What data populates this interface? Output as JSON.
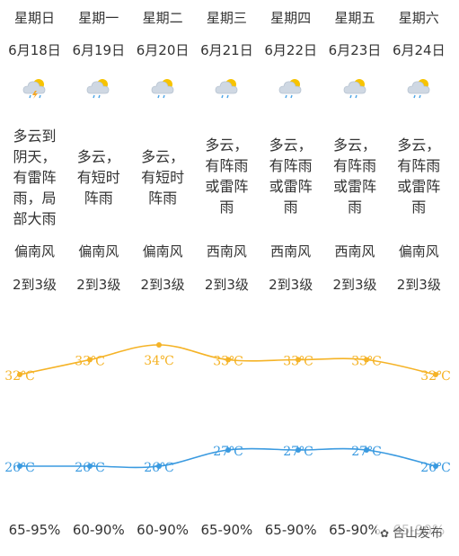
{
  "days": [
    {
      "weekday": "星期日",
      "date": "6月18日",
      "icon": "thunder-cloud-icon",
      "desc": "多云到阴天，有雷阵雨，局部大雨",
      "wind": "偏南风",
      "level": "2到3级",
      "humidity": "65-95%"
    },
    {
      "weekday": "星期一",
      "date": "6月19日",
      "icon": "partly-cloudy-shower-icon",
      "desc": "多云，有短时阵雨",
      "wind": "偏南风",
      "level": "2到3级",
      "humidity": "60-90%"
    },
    {
      "weekday": "星期二",
      "date": "6月20日",
      "icon": "partly-cloudy-shower-icon",
      "desc": "多云，有短时阵雨",
      "wind": "偏南风",
      "level": "2到3级",
      "humidity": "60-90%"
    },
    {
      "weekday": "星期三",
      "date": "6月21日",
      "icon": "partly-cloudy-shower-icon",
      "desc": "多云，有阵雨或雷阵雨",
      "wind": "西南风",
      "level": "2到3级",
      "humidity": "65-90%"
    },
    {
      "weekday": "星期四",
      "date": "6月22日",
      "icon": "partly-cloudy-shower-icon",
      "desc": "多云，有阵雨或雷阵雨",
      "wind": "西南风",
      "level": "2到3级",
      "humidity": "65-90%"
    },
    {
      "weekday": "星期五",
      "date": "6月23日",
      "icon": "partly-cloudy-shower-icon",
      "desc": "多云，有阵雨或雷阵雨",
      "wind": "西南风",
      "level": "2到3级",
      "humidity": "65-90%"
    },
    {
      "weekday": "星期六",
      "date": "6月24日",
      "icon": "partly-cloudy-shower-icon",
      "desc": "多云，有阵雨或雷阵雨",
      "wind": "偏南风",
      "level": "2到3级",
      "humidity": "65-90%"
    }
  ],
  "chart_data": {
    "type": "line",
    "x": [
      "星期日",
      "星期一",
      "星期二",
      "星期三",
      "星期四",
      "星期五",
      "星期六"
    ],
    "series": [
      {
        "values": [
          32,
          33,
          34,
          33,
          33,
          33,
          32
        ],
        "labels": [
          "32℃",
          "33℃",
          "34℃",
          "33℃",
          "33℃",
          "33℃",
          "32℃"
        ],
        "color": "#f5b326"
      },
      {
        "values": [
          26,
          26,
          26,
          27,
          27,
          27,
          26
        ],
        "labels": [
          "26℃",
          "26℃",
          "26℃",
          "27℃",
          "27℃",
          "27℃",
          "26℃"
        ],
        "color": "#3a9ae0"
      }
    ],
    "grid": false
  },
  "watermark": {
    "text": "合山发布",
    "icon": "wechat-icon"
  }
}
